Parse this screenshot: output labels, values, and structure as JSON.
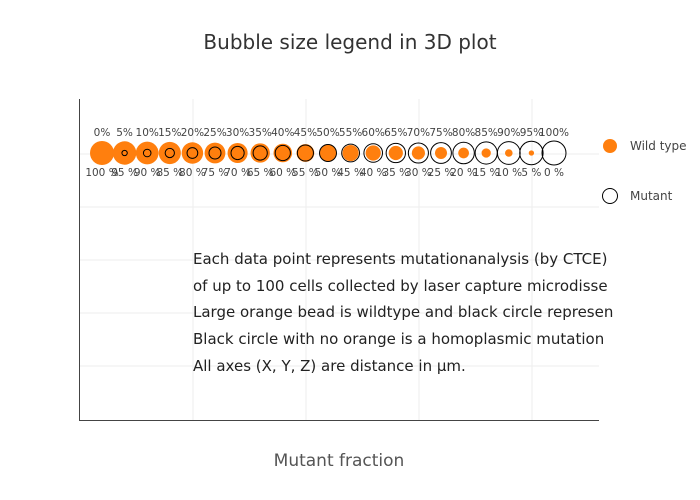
{
  "chart_data": {
    "type": "scatter",
    "title": "Bubble size legend in 3D plot",
    "xlabel": "Mutant fraction",
    "ylabel": "",
    "categories": [
      "0%",
      "5%",
      "10%",
      "15%",
      "20%",
      "25%",
      "30%",
      "35%",
      "40%",
      "45%",
      "50%",
      "55%",
      "60%",
      "65%",
      "70%",
      "75%",
      "80%",
      "85%",
      "90%",
      "95%",
      "100%"
    ],
    "series": [
      {
        "name": "Wild type",
        "color": "#ff7f0e",
        "labels": [
          "100 %",
          "95 %",
          "90 %",
          "85 %",
          "80 %",
          "75 %",
          "70 %",
          "65 %",
          "60 %",
          "55 %",
          "50 %",
          "45 %",
          "40 %",
          "35 %",
          "30 %",
          "25 %",
          "20 %",
          "15 %",
          "10 %",
          "5 %",
          "0 %"
        ],
        "values": [
          100,
          95,
          90,
          85,
          80,
          75,
          70,
          65,
          60,
          55,
          50,
          45,
          40,
          35,
          30,
          25,
          20,
          15,
          10,
          5,
          0
        ]
      },
      {
        "name": "Mutant",
        "color": "#000000",
        "values": [
          0,
          5,
          10,
          15,
          20,
          25,
          30,
          35,
          40,
          45,
          50,
          55,
          60,
          65,
          70,
          75,
          80,
          85,
          90,
          95,
          100
        ]
      }
    ],
    "annotation": [
      "Each data point represents mutationanalysis (by CTCE)",
      "of up to 100 cells collected by laser capture microdisse",
      "Large orange bead is wildtype and black circle represen",
      "Black circle with no orange is a homoplasmic mutation",
      "All axes (X, Y, Z) are distance in µm."
    ],
    "legend_position": "right",
    "grid": true
  }
}
